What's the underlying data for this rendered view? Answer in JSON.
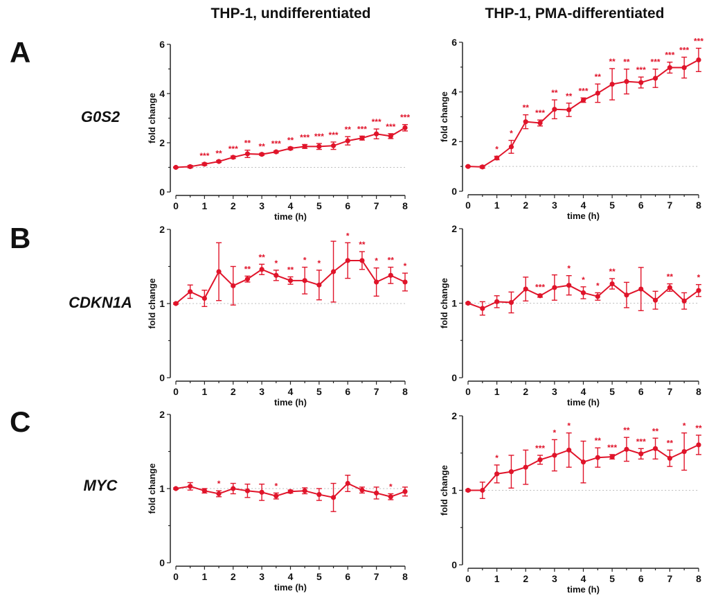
{
  "columns": [
    "THP-1, undifferentiated",
    "THP-1, PMA-differentiated"
  ],
  "rows": [
    {
      "letter": "A",
      "gene": "G0S2"
    },
    {
      "letter": "B",
      "gene": "CDKN1A"
    },
    {
      "letter": "C",
      "gene": "MYC"
    }
  ],
  "colors": {
    "series": "#e0142a",
    "axis": "#222222",
    "reference_line": "#bbbbbb"
  },
  "chart_data": [
    {
      "type": "line",
      "title": "THP-1, undifferentiated",
      "gene": "G0S2",
      "xlabel": "time (h)",
      "ylabel": "fold change",
      "xlim": [
        0,
        8
      ],
      "ylim": [
        0,
        6
      ],
      "xticks": [
        "0",
        "1",
        "2",
        "3",
        "4",
        "5",
        "6",
        "7",
        "8"
      ],
      "yticks": [
        "0",
        "2",
        "4",
        "6"
      ],
      "ytick_values": [
        0,
        2,
        4,
        6
      ],
      "reference_line": 1,
      "x": [
        0,
        0.5,
        1,
        1.5,
        2,
        2.5,
        3,
        3.5,
        4,
        4.5,
        5,
        5.5,
        6,
        6.5,
        7,
        7.5,
        8
      ],
      "y": [
        1.0,
        1.03,
        1.13,
        1.24,
        1.41,
        1.55,
        1.53,
        1.63,
        1.77,
        1.85,
        1.85,
        1.88,
        2.08,
        2.19,
        2.36,
        2.27,
        2.61
      ],
      "err": [
        0.02,
        0.05,
        0.05,
        0.04,
        0.05,
        0.15,
        0.04,
        0.04,
        0.05,
        0.08,
        0.12,
        0.15,
        0.17,
        0.08,
        0.2,
        0.1,
        0.13
      ],
      "significance": [
        "",
        "",
        "***",
        "**",
        "***",
        "**",
        "**",
        "***",
        "**",
        "***",
        "***",
        "***",
        "**",
        "***",
        "***",
        "***",
        "***"
      ]
    },
    {
      "type": "line",
      "title": "THP-1, PMA-differentiated",
      "gene": "G0S2",
      "xlabel": "time (h)",
      "ylabel": "fold change",
      "xlim": [
        0,
        8
      ],
      "ylim": [
        0,
        6
      ],
      "xticks": [
        "0",
        "1",
        "2",
        "3",
        "4",
        "5",
        "6",
        "7",
        "8"
      ],
      "yticks": [
        "0",
        "2",
        "4",
        "6"
      ],
      "ytick_values": [
        0,
        2,
        4,
        6
      ],
      "reference_line": 1,
      "x": [
        0,
        0.5,
        1,
        1.5,
        2,
        2.5,
        3,
        3.5,
        4,
        4.5,
        5,
        5.5,
        6,
        6.5,
        7,
        7.5,
        8
      ],
      "y": [
        1.0,
        0.98,
        1.34,
        1.79,
        2.8,
        2.75,
        3.3,
        3.28,
        3.67,
        3.95,
        4.31,
        4.42,
        4.38,
        4.55,
        4.98,
        4.98,
        5.29
      ],
      "err": [
        0.02,
        0.05,
        0.07,
        0.26,
        0.28,
        0.12,
        0.38,
        0.27,
        0.09,
        0.37,
        0.63,
        0.5,
        0.22,
        0.37,
        0.22,
        0.42,
        0.47
      ],
      "significance": [
        "",
        "",
        "*",
        "*",
        "**",
        "***",
        "**",
        "**",
        "***",
        "**",
        "**",
        "**",
        "***",
        "***",
        "***",
        "***",
        "***"
      ]
    },
    {
      "type": "line",
      "title": "THP-1, undifferentiated",
      "gene": "CDKN1A",
      "xlabel": "time (h)",
      "ylabel": "fold change",
      "xlim": [
        0,
        8
      ],
      "ylim": [
        0,
        2
      ],
      "xticks": [
        "0",
        "1",
        "2",
        "3",
        "4",
        "5",
        "6",
        "7",
        "8"
      ],
      "yticks": [
        "0",
        "1",
        "2"
      ],
      "ytick_values": [
        0,
        1,
        2
      ],
      "reference_line": 1,
      "x": [
        0,
        0.5,
        1,
        1.5,
        2,
        2.5,
        3,
        3.5,
        4,
        4.5,
        5,
        5.5,
        6,
        6.5,
        7,
        7.5,
        8
      ],
      "y": [
        1.0,
        1.16,
        1.07,
        1.43,
        1.24,
        1.33,
        1.46,
        1.38,
        1.31,
        1.31,
        1.25,
        1.43,
        1.58,
        1.58,
        1.29,
        1.38,
        1.29
      ],
      "err": [
        0.01,
        0.09,
        0.11,
        0.39,
        0.26,
        0.04,
        0.07,
        0.07,
        0.05,
        0.18,
        0.2,
        0.41,
        0.24,
        0.12,
        0.19,
        0.11,
        0.12
      ],
      "significance": [
        "",
        "",
        "",
        "",
        "",
        "**",
        "**",
        "*",
        "**",
        "*",
        "*",
        "",
        "*",
        "**",
        "*",
        "**",
        "*"
      ]
    },
    {
      "type": "line",
      "title": "THP-1, PMA-differentiated",
      "gene": "CDKN1A",
      "xlabel": "time (h)",
      "ylabel": "fold change",
      "xlim": [
        0,
        8
      ],
      "ylim": [
        0,
        2
      ],
      "xticks": [
        "0",
        "1",
        "2",
        "3",
        "4",
        "5",
        "6",
        "7",
        "8"
      ],
      "yticks": [
        "0",
        "1",
        "2"
      ],
      "ytick_values": [
        0,
        1,
        2
      ],
      "reference_line": 1,
      "x": [
        0,
        0.5,
        1,
        1.5,
        2,
        2.5,
        3,
        3.5,
        4,
        4.5,
        5,
        5.5,
        6,
        6.5,
        7,
        7.5,
        8
      ],
      "y": [
        1.0,
        0.93,
        1.02,
        1.01,
        1.19,
        1.1,
        1.21,
        1.24,
        1.14,
        1.09,
        1.26,
        1.11,
        1.19,
        1.04,
        1.21,
        1.03,
        1.17
      ],
      "err": [
        0.01,
        0.09,
        0.08,
        0.14,
        0.16,
        0.02,
        0.17,
        0.13,
        0.08,
        0.05,
        0.07,
        0.17,
        0.29,
        0.12,
        0.05,
        0.11,
        0.08
      ],
      "significance": [
        "",
        "",
        "",
        "",
        "",
        "***",
        "",
        "*",
        "*",
        "*",
        "**",
        "",
        "",
        "",
        "**",
        "",
        "*"
      ]
    },
    {
      "type": "line",
      "title": "THP-1, undifferentiated",
      "gene": "MYC",
      "xlabel": "time (h)",
      "ylabel": "fold change",
      "xlim": [
        0,
        8
      ],
      "ylim": [
        0,
        2
      ],
      "xticks": [
        "0",
        "1",
        "2",
        "3",
        "4",
        "5",
        "6",
        "7",
        "8"
      ],
      "yticks": [
        "0",
        "1",
        "2"
      ],
      "ytick_values": [
        0,
        1,
        2
      ],
      "reference_line": 1,
      "x": [
        0,
        0.5,
        1,
        1.5,
        2,
        2.5,
        3,
        3.5,
        4,
        4.5,
        5,
        5.5,
        6,
        6.5,
        7,
        7.5,
        8
      ],
      "y": [
        1.0,
        1.03,
        0.97,
        0.93,
        1.0,
        0.97,
        0.95,
        0.9,
        0.96,
        0.97,
        0.92,
        0.88,
        1.07,
        0.98,
        0.94,
        0.89,
        0.96
      ],
      "err": [
        0.01,
        0.05,
        0.03,
        0.04,
        0.07,
        0.09,
        0.11,
        0.04,
        0.02,
        0.04,
        0.08,
        0.19,
        0.11,
        0.04,
        0.08,
        0.04,
        0.06
      ],
      "significance": [
        "",
        "",
        "",
        "*",
        "",
        "",
        "",
        "*",
        "",
        "",
        "",
        "",
        "",
        "",
        "",
        "*",
        ""
      ]
    },
    {
      "type": "line",
      "title": "THP-1, PMA-differentiated",
      "gene": "MYC",
      "xlabel": "time (h)",
      "ylabel": "fold change",
      "xlim": [
        0,
        8
      ],
      "ylim": [
        0,
        2
      ],
      "xticks": [
        "0",
        "1",
        "2",
        "3",
        "4",
        "5",
        "6",
        "7",
        "8"
      ],
      "yticks": [
        "0",
        "1",
        "2"
      ],
      "ytick_values": [
        0,
        1,
        2
      ],
      "reference_line": 1,
      "x": [
        0,
        0.5,
        1,
        1.5,
        2,
        2.5,
        3,
        3.5,
        4,
        4.5,
        5,
        5.5,
        6,
        6.5,
        7,
        7.5,
        8
      ],
      "y": [
        1.0,
        1.0,
        1.22,
        1.25,
        1.31,
        1.41,
        1.47,
        1.54,
        1.38,
        1.44,
        1.45,
        1.55,
        1.49,
        1.56,
        1.43,
        1.52,
        1.61
      ],
      "err": [
        0.01,
        0.11,
        0.12,
        0.22,
        0.23,
        0.06,
        0.21,
        0.23,
        0.28,
        0.13,
        0.03,
        0.16,
        0.07,
        0.14,
        0.11,
        0.25,
        0.13
      ],
      "significance": [
        "",
        "",
        "*",
        "",
        "",
        "***",
        "*",
        "*",
        "",
        "**",
        "***",
        "**",
        "***",
        "**",
        "**",
        "*",
        "**"
      ]
    }
  ]
}
